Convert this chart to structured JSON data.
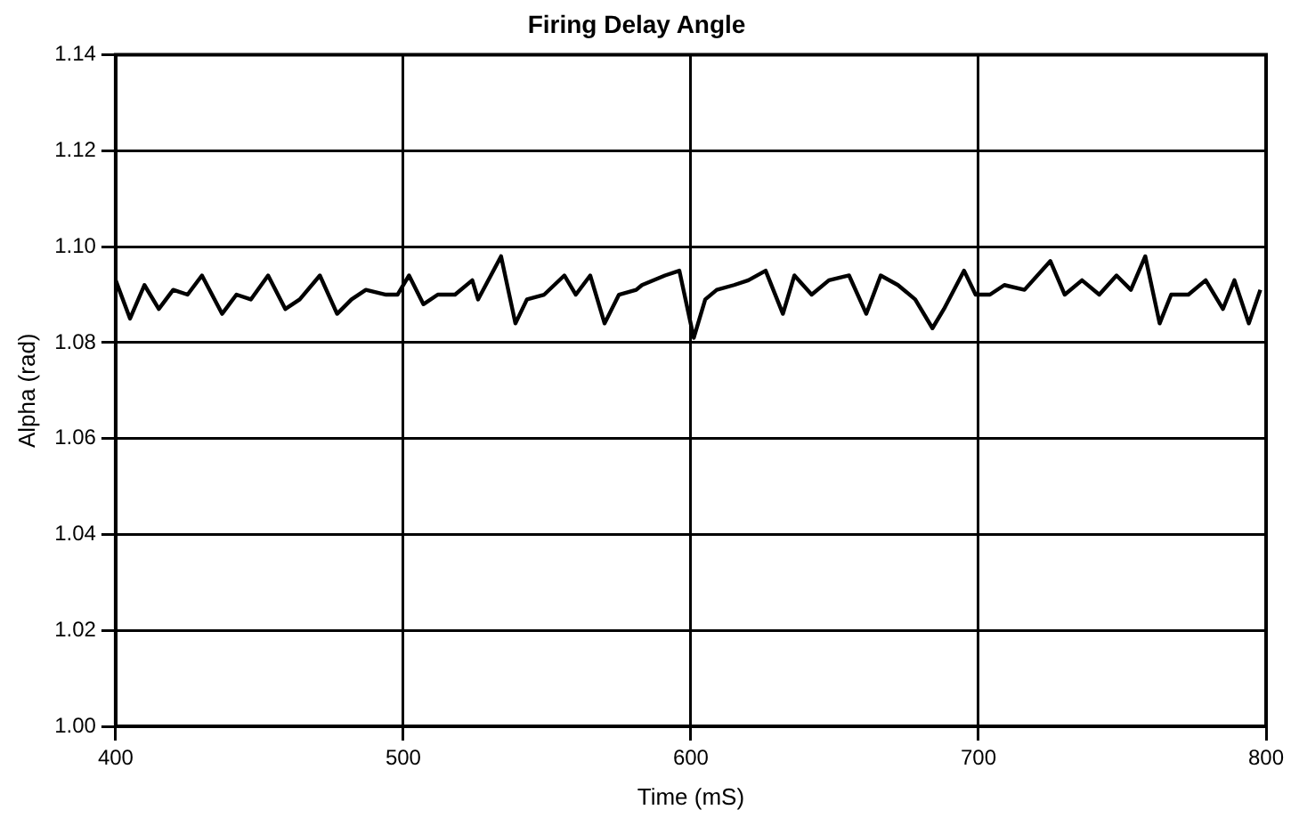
{
  "chart_data": {
    "type": "line",
    "title": "Firing Delay Angle",
    "xlabel": "Time (mS)",
    "ylabel": "Alpha (rad)",
    "x": [
      400,
      405,
      410,
      415,
      420,
      425,
      430,
      437,
      442,
      447,
      453,
      459,
      464,
      471,
      477,
      482,
      487,
      494,
      498,
      502,
      507,
      512,
      518,
      524,
      526,
      534,
      539,
      543,
      549,
      556,
      560,
      565,
      570,
      575,
      581,
      583,
      591,
      596,
      601,
      605,
      609,
      615,
      620,
      626,
      632,
      636,
      642,
      648,
      655,
      661,
      666,
      672,
      678,
      684,
      688,
      695,
      699,
      704,
      709,
      716,
      725,
      730,
      736,
      742,
      748,
      753,
      758,
      763,
      767,
      773,
      779,
      785,
      789,
      794,
      798
    ],
    "series": [
      {
        "color": "#000000",
        "values": [
          1.093,
          1.085,
          1.092,
          1.087,
          1.091,
          1.09,
          1.094,
          1.086,
          1.09,
          1.089,
          1.094,
          1.087,
          1.089,
          1.094,
          1.086,
          1.089,
          1.091,
          1.09,
          1.09,
          1.094,
          1.088,
          1.09,
          1.09,
          1.093,
          1.089,
          1.098,
          1.084,
          1.089,
          1.09,
          1.094,
          1.09,
          1.094,
          1.084,
          1.09,
          1.091,
          1.092,
          1.094,
          1.095,
          1.081,
          1.089,
          1.091,
          1.092,
          1.093,
          1.095,
          1.086,
          1.094,
          1.09,
          1.093,
          1.094,
          1.086,
          1.094,
          1.092,
          1.089,
          1.083,
          1.087,
          1.095,
          1.09,
          1.09,
          1.092,
          1.091,
          1.097,
          1.09,
          1.093,
          1.09,
          1.094,
          1.091,
          1.098,
          1.084,
          1.09,
          1.09,
          1.093,
          1.087,
          1.093,
          1.084,
          1.091
        ]
      }
    ],
    "xlim": [
      400,
      800
    ],
    "xticks": [
      400,
      500,
      600,
      700,
      800
    ],
    "ylim": [
      1.0,
      1.14
    ],
    "yticks": [
      {
        "value": 1.0,
        "label": "1.00"
      },
      {
        "value": 1.02,
        "label": "1.02"
      },
      {
        "value": 1.04,
        "label": "1.04"
      },
      {
        "value": 1.06,
        "label": "1.06"
      },
      {
        "value": 1.08,
        "label": "1.08"
      },
      {
        "value": 1.1,
        "label": "1.10"
      },
      {
        "value": 1.12,
        "label": "1.12"
      },
      {
        "value": 1.14,
        "label": "1.14"
      }
    ],
    "grid": true,
    "legend": false,
    "marker": "none",
    "line_style": "solid"
  }
}
